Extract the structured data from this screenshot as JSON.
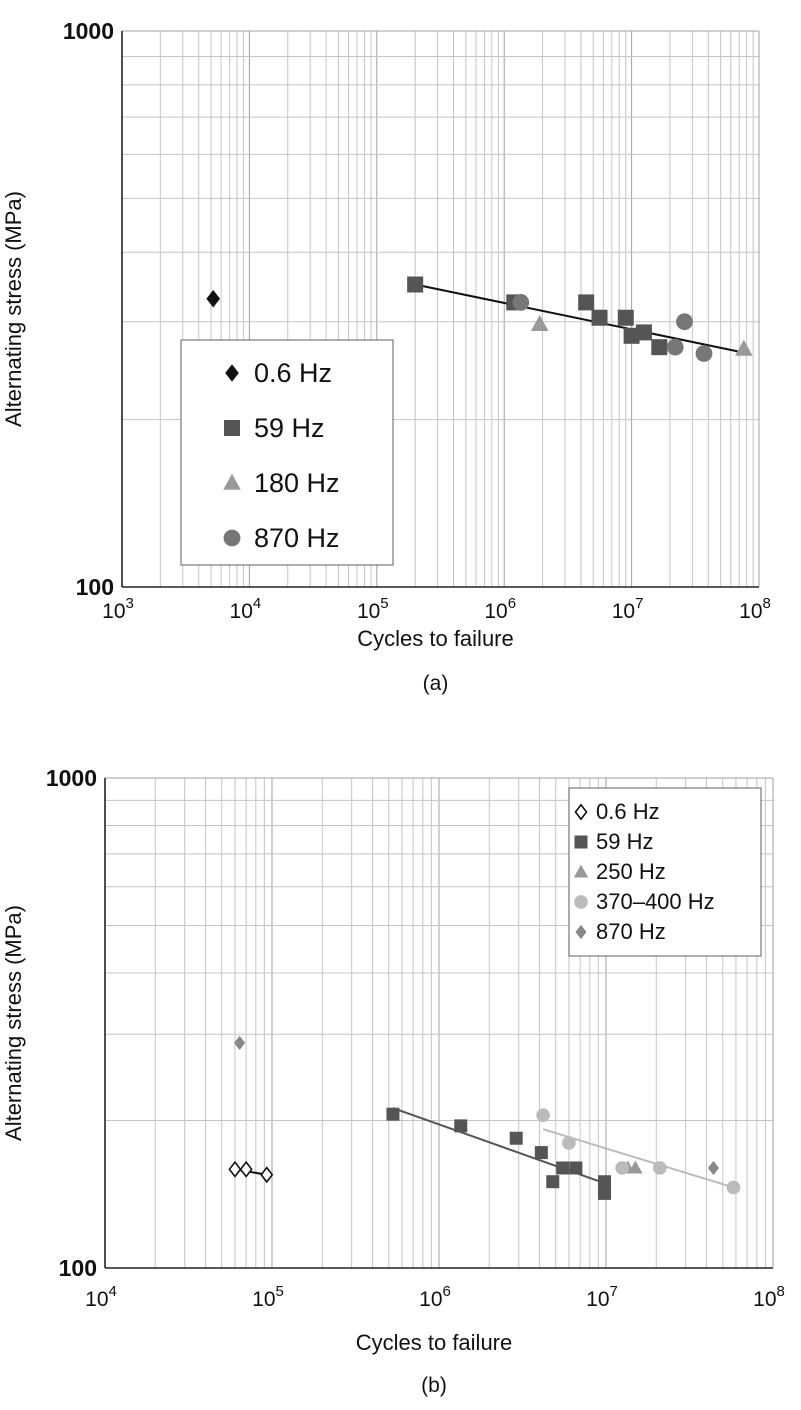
{
  "chart_data": [
    {
      "type": "scatter",
      "panel_label": "(a)",
      "xlabel": "Cycles to failure",
      "ylabel": "Alternating stress (MPa)",
      "x_scale": "log",
      "y_scale": "log",
      "xlim": [
        1000,
        100000000
      ],
      "ylim": [
        100,
        1000
      ],
      "x_ticks": [
        {
          "value": 1000,
          "base": "10",
          "exp": "3"
        },
        {
          "value": 10000,
          "base": "10",
          "exp": "4"
        },
        {
          "value": 100000,
          "base": "10",
          "exp": "5"
        },
        {
          "value": 1000000,
          "base": "10",
          "exp": "6"
        },
        {
          "value": 10000000,
          "base": "10",
          "exp": "7"
        },
        {
          "value": 100000000,
          "base": "10",
          "exp": "8"
        }
      ],
      "y_ticks": [
        {
          "value": 100,
          "label": "100"
        },
        {
          "value": 1000,
          "label": "1000"
        }
      ],
      "grid": true,
      "legend_position": "lower-left",
      "series": [
        {
          "name": "0.6 Hz",
          "marker": "diamond",
          "color": "#111111",
          "points": [
            [
              5200,
              330
            ]
          ]
        },
        {
          "name": "59 Hz",
          "marker": "square",
          "color": "#555555",
          "points": [
            [
              200000,
              350
            ],
            [
              1200000,
              325
            ],
            [
              4400000,
              325
            ],
            [
              5600000,
              305
            ],
            [
              9000000,
              305
            ],
            [
              10000000,
              283
            ],
            [
              12500000,
              287
            ],
            [
              16500000,
              270
            ]
          ]
        },
        {
          "name": "180 Hz",
          "marker": "triangle",
          "color": "#999999",
          "points": [
            [
              1900000,
              297
            ],
            [
              76000000,
              268
            ]
          ]
        },
        {
          "name": "870 Hz",
          "marker": "circle",
          "color": "#777777",
          "points": [
            [
              1350000,
              325
            ],
            [
              22000000,
              270
            ],
            [
              26000000,
              300
            ],
            [
              37000000,
              263
            ]
          ]
        }
      ],
      "fit_lines": [
        {
          "name": "",
          "color": "#111111",
          "points": [
            [
              200000,
              350
            ],
            [
              76000000,
              264
            ]
          ]
        }
      ]
    },
    {
      "type": "scatter",
      "panel_label": "(b)",
      "xlabel": "Cycles to failure",
      "ylabel": "Alternating stress (MPa)",
      "x_scale": "log",
      "y_scale": "log",
      "xlim": [
        10000,
        100000000
      ],
      "ylim": [
        100,
        1000
      ],
      "x_ticks": [
        {
          "value": 10000,
          "base": "10",
          "exp": "4"
        },
        {
          "value": 100000,
          "base": "10",
          "exp": "5"
        },
        {
          "value": 1000000,
          "base": "10",
          "exp": "6"
        },
        {
          "value": 10000000,
          "base": "10",
          "exp": "7"
        },
        {
          "value": 100000000,
          "base": "10",
          "exp": "8"
        }
      ],
      "y_ticks": [
        {
          "value": 100,
          "label": "100"
        },
        {
          "value": 1000,
          "label": "1000"
        }
      ],
      "grid": true,
      "legend_position": "top-right",
      "series": [
        {
          "name": "0.6 Hz",
          "marker": "diamond-open",
          "color": "#111111",
          "points": [
            [
              60000,
              159
            ],
            [
              70000,
              159
            ],
            [
              93000,
              155
            ]
          ]
        },
        {
          "name": "59 Hz",
          "marker": "square",
          "color": "#555555",
          "points": [
            [
              530000,
              206
            ],
            [
              1350000,
              195
            ],
            [
              2900000,
              184
            ],
            [
              4100000,
              172
            ],
            [
              4800000,
              150
            ],
            [
              5500000,
              160
            ],
            [
              6600000,
              160
            ],
            [
              9800000,
              150
            ],
            [
              9800000,
              142
            ]
          ]
        },
        {
          "name": "250 Hz",
          "marker": "triangle",
          "color": "#999999",
          "points": [
            [
              13500000,
              160
            ],
            [
              15000000,
              160
            ]
          ]
        },
        {
          "name": "370–400 Hz",
          "marker": "circle",
          "color": "#bbbbbb",
          "points": [
            [
              4200000,
              205
            ],
            [
              6000000,
              180
            ],
            [
              12500000,
              160
            ],
            [
              21000000,
              160
            ],
            [
              58000000,
              146
            ]
          ]
        },
        {
          "name": "870 Hz",
          "marker": "diamond",
          "color": "#888888",
          "points": [
            [
              64000,
              288
            ],
            [
              44000000,
              160
            ]
          ]
        }
      ],
      "fit_lines": [
        {
          "name": "",
          "color": "#555555",
          "points": [
            [
              530000,
              212
            ],
            [
              9800000,
              149
            ]
          ]
        },
        {
          "name": "",
          "color": "#bbbbbb",
          "points": [
            [
              4200000,
              192
            ],
            [
              58000000,
              146
            ]
          ]
        },
        {
          "name": "",
          "color": "#111111",
          "points": [
            [
              60000,
              159
            ],
            [
              93000,
              155
            ]
          ]
        }
      ]
    }
  ]
}
